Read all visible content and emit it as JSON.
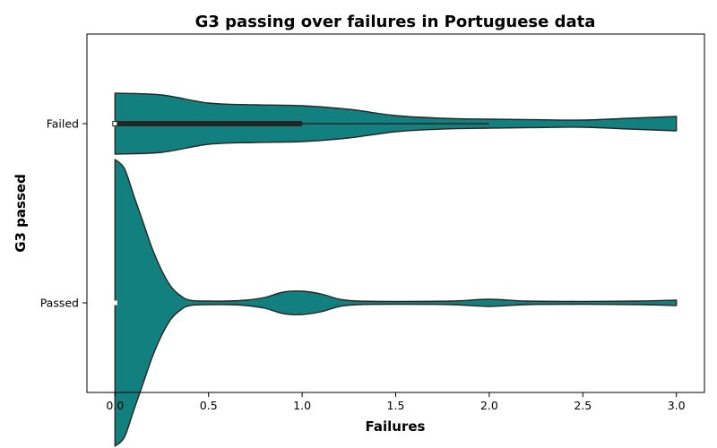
{
  "chart_data": {
    "type": "violin",
    "orientation": "horizontal",
    "title": "G3 passing over failures in Portuguese data",
    "xlabel": "Failures",
    "ylabel": "G3 passed",
    "xlim": [
      -0.15,
      3.15
    ],
    "xticks": [
      0.0,
      0.5,
      1.0,
      1.5,
      2.0,
      2.5,
      3.0
    ],
    "xtick_labels": [
      "0.0",
      "0.5",
      "1.0",
      "1.5",
      "2.0",
      "2.5",
      "3.0"
    ],
    "categories": [
      "Failed",
      "Passed"
    ],
    "fill_color": "#12807F",
    "edge_color": "#262626",
    "grid": false,
    "violins": [
      {
        "category": "Failed",
        "quartiles": [
          0.0,
          0.0,
          1.0
        ],
        "whisker": [
          0.0,
          2.0
        ],
        "density_x": [
          0.0,
          0.25,
          0.5,
          0.75,
          1.0,
          1.25,
          1.5,
          1.75,
          2.0,
          2.25,
          2.5,
          2.75,
          3.0
        ],
        "density_halfwidth": [
          0.17,
          0.16,
          0.115,
          0.105,
          0.1,
          0.08,
          0.045,
          0.03,
          0.025,
          0.022,
          0.02,
          0.03,
          0.04
        ]
      },
      {
        "category": "Passed",
        "quartiles": [
          0.0,
          0.0,
          0.0
        ],
        "whisker": [
          0.0,
          0.0
        ],
        "density_x": [
          0.0,
          0.05,
          0.1,
          0.15,
          0.2,
          0.25,
          0.3,
          0.35,
          0.4,
          0.5,
          0.6,
          0.7,
          0.8,
          0.9,
          1.0,
          1.1,
          1.2,
          1.3,
          1.5,
          1.8,
          2.0,
          2.2,
          2.5,
          2.8,
          3.0
        ],
        "density_halfwidth": [
          0.8,
          0.75,
          0.6,
          0.45,
          0.3,
          0.18,
          0.09,
          0.04,
          0.015,
          0.01,
          0.01,
          0.015,
          0.03,
          0.06,
          0.065,
          0.05,
          0.02,
          0.01,
          0.008,
          0.01,
          0.02,
          0.01,
          0.008,
          0.01,
          0.015
        ]
      }
    ]
  }
}
